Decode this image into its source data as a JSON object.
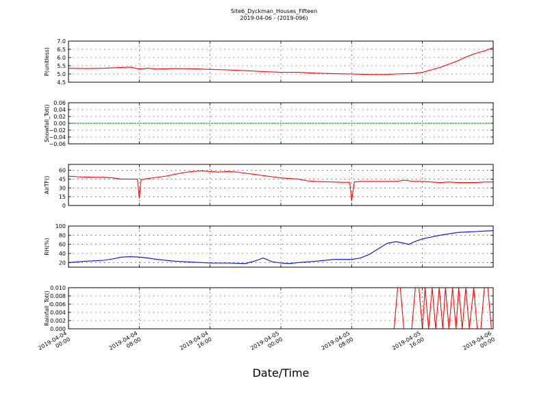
{
  "figure": {
    "title_line1": "Site6_Dyckman_Houses_Fifteen",
    "title_line2": "2019-04-06 - (2019-096)",
    "xlabel": "Date/Time"
  },
  "chart_data": [
    {
      "type": "line",
      "ylabel": "P(unitless)",
      "ylim": [
        4.5,
        7.0
      ],
      "yticks": [
        "7.0",
        "6.5",
        "6.0",
        "5.5",
        "5.0",
        "4.5"
      ],
      "ytick_values": [
        7.0,
        6.5,
        6.0,
        5.5,
        5.0,
        4.5
      ],
      "xlim": [
        0,
        48
      ],
      "grid": true,
      "series": [
        {
          "color": "#ff0000",
          "x": [
            0,
            2,
            4,
            6,
            7,
            8,
            9,
            10,
            12,
            14,
            16,
            18,
            20,
            22,
            24,
            26,
            28,
            30,
            32,
            34,
            36,
            37,
            38,
            39,
            40,
            41,
            42,
            43,
            44,
            45,
            46,
            47,
            48
          ],
          "y": [
            5.35,
            5.33,
            5.35,
            5.4,
            5.42,
            5.3,
            5.35,
            5.3,
            5.33,
            5.32,
            5.28,
            5.25,
            5.2,
            5.15,
            5.1,
            5.1,
            5.05,
            5.02,
            5.0,
            4.97,
            4.97,
            5.0,
            5.02,
            5.03,
            5.1,
            5.25,
            5.4,
            5.6,
            5.8,
            6.05,
            6.25,
            6.4,
            6.6
          ]
        }
      ]
    },
    {
      "type": "line",
      "ylabel": "Snowfall_Tot()",
      "ylim": [
        -0.06,
        0.06
      ],
      "yticks": [
        "0.06",
        "0.04",
        "0.02",
        "0.00",
        "−0.02",
        "−0.04",
        "−0.06"
      ],
      "ytick_values": [
        0.06,
        0.04,
        0.02,
        0.0,
        -0.02,
        -0.04,
        -0.06
      ],
      "xlim": [
        0,
        48
      ],
      "grid": true,
      "series": [
        {
          "color": "#008000",
          "x": [
            0,
            48
          ],
          "y": [
            0.0,
            0.0
          ]
        }
      ]
    },
    {
      "type": "line",
      "ylabel": "AirTF()",
      "ylim": [
        0,
        70
      ],
      "yticks": [
        "60",
        "45",
        "30",
        "15",
        "0"
      ],
      "ytick_values": [
        60,
        45,
        30,
        15,
        0
      ],
      "xlim": [
        0,
        48
      ],
      "grid": true,
      "series": [
        {
          "color": "#ff0000",
          "x": [
            0,
            1,
            2,
            3,
            4,
            5,
            6,
            7,
            7.8,
            8.0,
            8.2,
            9,
            10,
            11,
            12,
            13,
            14,
            15,
            16,
            17,
            18,
            19,
            20,
            21,
            22,
            23,
            24,
            25,
            26,
            27,
            28,
            29,
            30,
            31,
            31.8,
            32.0,
            32.3,
            33,
            34,
            35,
            36,
            37,
            38,
            39,
            40,
            41,
            42,
            43,
            44,
            45,
            46,
            47,
            48
          ],
          "y": [
            50,
            49,
            48.5,
            48,
            48,
            47,
            45,
            45,
            45,
            12,
            44,
            46,
            48,
            50,
            53,
            56,
            58,
            59,
            58,
            57,
            58,
            57,
            55,
            53,
            51,
            49,
            47,
            46,
            45,
            42,
            41,
            40.5,
            40,
            39.5,
            39.5,
            8,
            40,
            41,
            41,
            41,
            41,
            41,
            43,
            41,
            41,
            40,
            39,
            40,
            39,
            39,
            39,
            40,
            40
          ]
        }
      ]
    },
    {
      "type": "line",
      "ylabel": "RH(%)",
      "ylim": [
        10,
        100
      ],
      "yticks": [
        "100",
        "80",
        "60",
        "40",
        "20"
      ],
      "ytick_values": [
        100,
        80,
        60,
        40,
        20
      ],
      "xlim": [
        0,
        48
      ],
      "grid": true,
      "series": [
        {
          "color": "#0000ff",
          "x": [
            0,
            2,
            4,
            5,
            6,
            7,
            8,
            9,
            10,
            12,
            14,
            16,
            18,
            20,
            21,
            22,
            23,
            24,
            25,
            26,
            28,
            30,
            31,
            32,
            33,
            34,
            35,
            36,
            37,
            38,
            38.5,
            39,
            40,
            41,
            42,
            43,
            44,
            45,
            46,
            47,
            48
          ],
          "y": [
            20,
            23,
            25,
            28,
            32,
            33,
            32,
            30,
            27,
            23,
            21,
            19,
            19,
            18,
            23,
            30,
            22,
            19,
            18,
            20,
            23,
            27,
            27,
            27,
            30,
            38,
            50,
            62,
            66,
            62,
            60,
            65,
            72,
            76,
            80,
            83,
            86,
            87,
            88,
            89,
            90
          ]
        }
      ]
    },
    {
      "type": "line",
      "ylabel": "Rainfall_Tot()",
      "ylim": [
        0.0,
        0.01
      ],
      "yticks": [
        "0.010",
        "0.008",
        "0.006",
        "0.004",
        "0.002",
        "0.000"
      ],
      "ytick_values": [
        0.01,
        0.008,
        0.006,
        0.004,
        0.002,
        0.0
      ],
      "xlim": [
        0,
        48
      ],
      "grid": true,
      "series": [
        {
          "color": "#ff0000",
          "x": [
            0,
            36.8,
            37.2,
            37.5,
            37.9,
            38.8,
            39.2,
            39.6,
            40.0,
            40.3,
            40.7,
            41.1,
            41.5,
            41.9,
            42.3,
            42.6,
            43.0,
            43.4,
            43.8,
            44.1,
            44.5,
            44.9,
            45.3,
            45.8,
            46.2,
            46.6,
            47.0,
            47.4,
            47.8,
            48
          ],
          "y": [
            0,
            0,
            0.01,
            0.01,
            0,
            0,
            0.01,
            0.01,
            0,
            0.01,
            0,
            0.01,
            0,
            0.01,
            0,
            0.01,
            0,
            0.01,
            0,
            0.01,
            0,
            0.01,
            0,
            0.01,
            0,
            0,
            0.01,
            0.01,
            0,
            0
          ]
        }
      ]
    }
  ],
  "xticks": [
    {
      "value": 0,
      "line1": "2019-04-04",
      "line2": "00:00"
    },
    {
      "value": 8,
      "line1": "2019-04-04",
      "line2": "08:00"
    },
    {
      "value": 16,
      "line1": "2019-04-04",
      "line2": "16:00"
    },
    {
      "value": 24,
      "line1": "2019-04-05",
      "line2": "00:00"
    },
    {
      "value": 32,
      "line1": "2019-04-05",
      "line2": "08:00"
    },
    {
      "value": 40,
      "line1": "2019-04-05",
      "line2": "16:00"
    },
    {
      "value": 48,
      "line1": "2019-04-06",
      "line2": "00:00"
    }
  ]
}
